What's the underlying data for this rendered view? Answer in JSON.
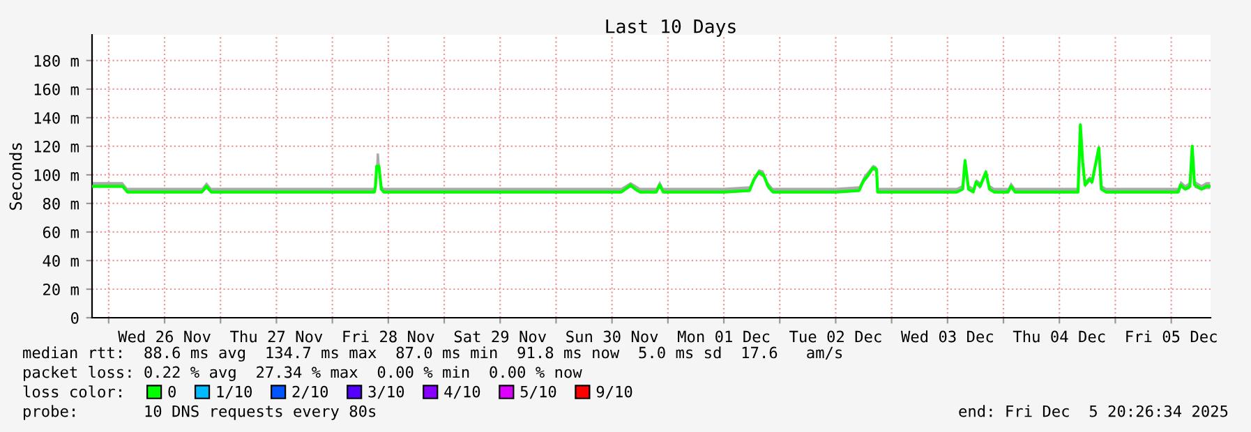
{
  "chart_data": {
    "type": "line",
    "title": "Last 10 Days",
    "ylabel": "Seconds",
    "x": [
      "2025-11-25T20:30",
      "2025-11-26T03:00",
      "2025-11-26T04:00",
      "2025-11-26T12:00",
      "2025-11-26T20:00",
      "2025-11-26T21:00",
      "2025-11-26T22:00",
      "2025-11-27T12:00",
      "2025-11-28T09:00",
      "2025-11-28T09:15",
      "2025-11-28T09:30",
      "2025-11-28T10:00",
      "2025-11-28T10:30",
      "2025-11-28T11:00",
      "2025-11-29T12:00",
      "2025-11-30T14:00",
      "2025-11-30T16:00",
      "2025-11-30T17:00",
      "2025-11-30T18:00",
      "2025-11-30T21:30",
      "2025-11-30T22:15",
      "2025-11-30T23:00",
      "2025-12-01T12:00",
      "2025-12-01T17:30",
      "2025-12-01T18:30",
      "2025-12-01T19:30",
      "2025-12-01T20:30",
      "2025-12-01T21:30",
      "2025-12-01T22:30",
      "2025-12-02T12:00",
      "2025-12-02T17:00",
      "2025-12-02T18:00",
      "2025-12-02T19:00",
      "2025-12-02T20:00",
      "2025-12-02T20:45",
      "2025-12-02T21:00",
      "2025-12-03T14:00",
      "2025-12-03T15:15",
      "2025-12-03T15:45",
      "2025-12-03T16:30",
      "2025-12-03T17:30",
      "2025-12-03T18:08",
      "2025-12-03T19:00",
      "2025-12-03T20:14",
      "2025-12-03T21:00",
      "2025-12-03T22:00",
      "2025-12-04T01:00",
      "2025-12-04T01:36",
      "2025-12-04T02:30",
      "2025-12-04T16:00",
      "2025-12-04T16:30",
      "2025-12-04T17:00",
      "2025-12-04T17:30",
      "2025-12-04T18:30",
      "2025-12-04T19:00",
      "2025-12-04T20:28",
      "2025-12-04T21:00",
      "2025-12-04T22:00",
      "2025-12-05T12:00",
      "2025-12-05T13:30",
      "2025-12-05T14:00",
      "2025-12-05T15:00",
      "2025-12-05T16:00",
      "2025-12-05T16:30",
      "2025-12-05T17:00",
      "2025-12-05T18:30",
      "2025-12-05T19:30",
      "2025-12-05T20:20"
    ],
    "series": [
      {
        "name": "0",
        "color": "#00ff00",
        "values": [
          92,
          92,
          88,
          88,
          88,
          92,
          88,
          88,
          88,
          92,
          106,
          106,
          90,
          88,
          88,
          88,
          93,
          90,
          88,
          88,
          93,
          88,
          88,
          89,
          97,
          102,
          100,
          92,
          88,
          88,
          89,
          96,
          100,
          105,
          104,
          88,
          88,
          90,
          110,
          90,
          88,
          95,
          92,
          102,
          90,
          88,
          88,
          92,
          88,
          88,
          135,
          109,
          93,
          97,
          95,
          119,
          90,
          88,
          88,
          88,
          93,
          90,
          92,
          120,
          93,
          90,
          92,
          92
        ],
        "lower": [
          91,
          91,
          87,
          87,
          87,
          90,
          87,
          87,
          87,
          90,
          104,
          104,
          89,
          87,
          87,
          87,
          91,
          89,
          87,
          87,
          91,
          87,
          87,
          88,
          95,
          100,
          98,
          90,
          87,
          87,
          88,
          94,
          98,
          103,
          102,
          87,
          87,
          89,
          107,
          89,
          87,
          93,
          90,
          100,
          89,
          87,
          87,
          90,
          87,
          87,
          132,
          106,
          91,
          95,
          93,
          116,
          89,
          87,
          87,
          87,
          91,
          89,
          90,
          118,
          91,
          89,
          90,
          90
        ],
        "upper": [
          95,
          95,
          91,
          91,
          91,
          95,
          91,
          91,
          91,
          95,
          115,
          115,
          93,
          91,
          91,
          91,
          95,
          93,
          91,
          91,
          96,
          91,
          91,
          92,
          99,
          104,
          103,
          95,
          91,
          91,
          92,
          99,
          103,
          107,
          106,
          91,
          91,
          93,
          112,
          93,
          91,
          97,
          95,
          104,
          93,
          91,
          91,
          95,
          91,
          91,
          138,
          112,
          96,
          99,
          98,
          122,
          93,
          91,
          91,
          91,
          96,
          93,
          95,
          123,
          96,
          93,
          95,
          95
        ]
      },
      {
        "name": "1/10",
        "color": "#00bbff",
        "values": [
          null,
          null,
          null,
          null,
          null,
          null,
          null,
          null,
          null,
          null,
          null,
          null,
          null,
          null,
          null,
          null,
          null,
          null,
          null,
          null,
          null,
          null,
          null,
          null,
          null,
          null,
          null,
          null,
          null,
          null,
          null,
          null,
          null,
          null,
          null,
          null,
          null,
          null,
          null,
          null,
          null,
          null,
          null,
          null,
          null,
          null,
          null,
          null,
          null,
          null,
          null,
          null,
          null,
          null,
          null,
          null,
          null,
          null,
          null,
          null,
          null,
          null,
          null,
          null,
          null,
          null,
          null,
          null
        ]
      },
      {
        "name": "2/10",
        "color": "#0055ff",
        "values": [
          null,
          null,
          null,
          null,
          null,
          null,
          null,
          null,
          null,
          null,
          null,
          null,
          null,
          null,
          null,
          null,
          null,
          null,
          null,
          null,
          null,
          null,
          null,
          null,
          null,
          null,
          null,
          null,
          null,
          null,
          null,
          null,
          null,
          null,
          null,
          null,
          null,
          null,
          null,
          null,
          null,
          null,
          null,
          null,
          null,
          null,
          null,
          null,
          null,
          null,
          null,
          null,
          null,
          null,
          null,
          null,
          null,
          null,
          null,
          null,
          null,
          null,
          null,
          null,
          null,
          null,
          null,
          null
        ]
      },
      {
        "name": "3/10",
        "color": "#5500ff",
        "values": [
          null,
          null,
          null,
          null,
          null,
          null,
          null,
          null,
          null,
          null,
          null,
          null,
          null,
          null,
          null,
          null,
          null,
          null,
          null,
          null,
          null,
          null,
          null,
          null,
          null,
          null,
          null,
          null,
          null,
          null,
          null,
          null,
          null,
          null,
          null,
          null,
          null,
          null,
          null,
          null,
          null,
          null,
          null,
          null,
          null,
          null,
          null,
          null,
          null,
          null,
          null,
          null,
          null,
          null,
          null,
          null,
          null,
          null,
          null,
          null,
          null,
          null,
          null,
          null,
          null,
          null,
          null,
          null
        ]
      },
      {
        "name": "4/10",
        "color": "#8800ff",
        "values": [
          null,
          null,
          null,
          null,
          null,
          null,
          null,
          null,
          null,
          null,
          null,
          null,
          null,
          null,
          null,
          null,
          null,
          null,
          null,
          null,
          null,
          null,
          null,
          null,
          null,
          null,
          null,
          null,
          null,
          null,
          null,
          null,
          null,
          null,
          null,
          null,
          null,
          null,
          null,
          null,
          null,
          null,
          null,
          null,
          null,
          null,
          null,
          null,
          null,
          null,
          null,
          null,
          null,
          null,
          null,
          null,
          null,
          null,
          null,
          null,
          null,
          null,
          null,
          null,
          null,
          null,
          null,
          null
        ]
      },
      {
        "name": "5/10",
        "color": "#dd00ff",
        "values": [
          null,
          null,
          null,
          null,
          null,
          null,
          null,
          null,
          null,
          null,
          null,
          null,
          null,
          null,
          null,
          null,
          null,
          null,
          null,
          null,
          null,
          null,
          null,
          null,
          null,
          null,
          null,
          null,
          null,
          null,
          null,
          null,
          null,
          null,
          null,
          null,
          null,
          null,
          null,
          null,
          null,
          null,
          null,
          null,
          null,
          null,
          null,
          null,
          null,
          null,
          null,
          null,
          null,
          null,
          null,
          null,
          null,
          null,
          null,
          null,
          null,
          null,
          null,
          null,
          null,
          null,
          null,
          null
        ]
      },
      {
        "name": "9/10",
        "color": "#ff0000",
        "values": [
          null,
          null,
          null,
          null,
          null,
          null,
          null,
          null,
          null,
          null,
          null,
          null,
          null,
          null,
          null,
          null,
          null,
          null,
          null,
          null,
          null,
          null,
          null,
          null,
          null,
          null,
          null,
          null,
          null,
          null,
          null,
          null,
          null,
          null,
          null,
          null,
          null,
          null,
          null,
          null,
          null,
          null,
          null,
          null,
          null,
          null,
          null,
          null,
          null,
          null,
          null,
          null,
          null,
          null,
          null,
          null,
          null,
          null,
          null,
          null,
          null,
          null,
          null,
          null,
          null,
          null,
          null,
          null
        ]
      }
    ],
    "xlim": [
      "2025-11-25T20:26",
      "2025-12-05T20:26"
    ],
    "xticks": [
      {
        "value": "2025-11-26T00:00",
        "label": null
      },
      {
        "value": "2025-11-26T12:00",
        "label": "Wed 26 Nov"
      },
      {
        "value": "2025-11-27T00:00",
        "label": null
      },
      {
        "value": "2025-11-27T12:00",
        "label": "Thu 27 Nov"
      },
      {
        "value": "2025-11-28T00:00",
        "label": null
      },
      {
        "value": "2025-11-28T12:00",
        "label": "Fri 28 Nov"
      },
      {
        "value": "2025-11-29T00:00",
        "label": null
      },
      {
        "value": "2025-11-29T12:00",
        "label": "Sat 29 Nov"
      },
      {
        "value": "2025-11-30T00:00",
        "label": null
      },
      {
        "value": "2025-11-30T12:00",
        "label": "Sun 30 Nov"
      },
      {
        "value": "2025-12-01T00:00",
        "label": null
      },
      {
        "value": "2025-12-01T12:00",
        "label": "Mon 01 Dec"
      },
      {
        "value": "2025-12-02T00:00",
        "label": null
      },
      {
        "value": "2025-12-02T12:00",
        "label": "Tue 02 Dec"
      },
      {
        "value": "2025-12-03T00:00",
        "label": null
      },
      {
        "value": "2025-12-03T12:00",
        "label": "Wed 03 Dec"
      },
      {
        "value": "2025-12-04T00:00",
        "label": null
      },
      {
        "value": "2025-12-04T12:00",
        "label": "Thu 04 Dec"
      },
      {
        "value": "2025-12-05T00:00",
        "label": null
      },
      {
        "value": "2025-12-05T12:00",
        "label": "Fri 05 Dec"
      }
    ],
    "ylim": [
      0,
      198
    ],
    "yticks": [
      0,
      {
        "value": 20,
        "label": "20 m"
      },
      {
        "value": 40,
        "label": "40 m"
      },
      {
        "value": 60,
        "label": "60 m"
      },
      {
        "value": 80,
        "label": "80 m"
      },
      {
        "value": 100,
        "label": "100 m"
      },
      {
        "value": 120,
        "label": "120 m"
      },
      {
        "value": 140,
        "label": "140 m"
      },
      {
        "value": 160,
        "label": "160 m"
      },
      {
        "value": 180,
        "label": "180 m"
      }
    ],
    "grid": true,
    "legend": "bottom",
    "line_style": "solid",
    "annotations": [
      "median rtt:  88.6 ms avg  134.7 ms max  87.0 ms min  91.8 ms now  5.0 ms sd  17.6   am/s",
      "packet loss: 0.22 % avg  27.34 % max  0.00 % min  0.00 % now",
      "loss color:",
      "probe:       10 DNS requests every 80s",
      "end: Fri Dec  5 20:26:34 2025"
    ]
  }
}
